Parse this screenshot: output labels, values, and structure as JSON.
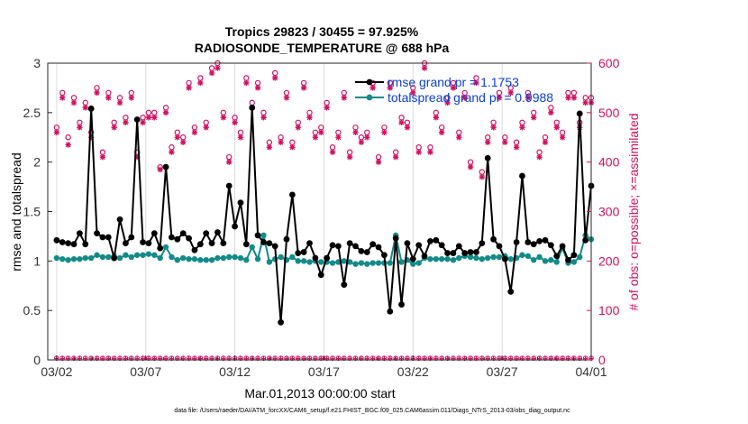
{
  "chart_data": {
    "type": "line",
    "title": "Tropics 29823 / 30455 = 97.925%",
    "subtitle": "RADIOSONDE_TEMPERATURE @ 688 hPa",
    "xlabel": "Mar.01,2013 00:00:00 start",
    "ylabel": "rmse and totalspread",
    "ylabel_right": "# of obs: o=possible; ×=assimilated",
    "x_tick_labels": [
      "03/02",
      "03/07",
      "03/12",
      "03/17",
      "03/22",
      "03/27",
      "04/01"
    ],
    "x_ticks": [
      1,
      6,
      11,
      16,
      21,
      26,
      31
    ],
    "xlim": [
      0.5,
      31.0
    ],
    "ylim": [
      0,
      3
    ],
    "y_tick_labels": [
      "0",
      "0.5",
      "1",
      "1.5",
      "2",
      "2.5",
      "3"
    ],
    "ylim_right": [
      0,
      600
    ],
    "y_right_tick_labels": [
      "0",
      "100",
      "200",
      "300",
      "400",
      "500",
      "600"
    ],
    "grid": "vertical",
    "legend_position": "top-right",
    "footnote": "data file: /Users/raeder/DAI/ATM_forcXX/CAM6_setup/f.e21.FHIST_BGC.f09_025.CAM6assim.011/Diags_NTrS_2013-03/obs_diag_output.nc",
    "series": [
      {
        "name": "rmse grand pr = 1.1753",
        "color": "#000000",
        "values": [
          1.21,
          1.19,
          1.18,
          1.17,
          1.28,
          1.17,
          2.54,
          1.28,
          1.24,
          1.24,
          1.03,
          1.42,
          1.18,
          1.24,
          2.43,
          1.19,
          1.18,
          1.28,
          1.13,
          1.95,
          1.24,
          1.22,
          1.28,
          1.23,
          1.11,
          1.17,
          1.28,
          1.18,
          1.29,
          1.18,
          1.76,
          1.35,
          1.59,
          1.17,
          2.55,
          1.26,
          1.19,
          1.18,
          1.15,
          0.38,
          1.22,
          1.67,
          1.08,
          1.09,
          1.18,
          1.03,
          0.86,
          1.03,
          1.16,
          1.15,
          0.76,
          1.18,
          1.15,
          1.1,
          1.09,
          1.17,
          1.14,
          1.06,
          0.49,
          1.23,
          0.56,
          1.18,
          1.02,
          1.16,
          1.05,
          1.2,
          1.21,
          1.16,
          1.08,
          1.08,
          1.15,
          1.08,
          1.09,
          1.09,
          1.18,
          2.04,
          1.22,
          1.15,
          1.02,
          0.69,
          1.19,
          1.86,
          1.19,
          1.17,
          1.2,
          1.21,
          1.16,
          1.05,
          1.15,
          1.01,
          1.06,
          2.49,
          1.21,
          1.76
        ]
      },
      {
        "name": "totalspread grand pr = 0.9988",
        "color": "#138b88",
        "values": [
          1.03,
          1.02,
          1.01,
          1.02,
          1.02,
          1.03,
          1.03,
          1.06,
          1.04,
          1.04,
          1.05,
          1.03,
          1.06,
          1.04,
          1.06,
          1.06,
          1.07,
          1.06,
          1.03,
          1.14,
          1.04,
          1.01,
          1.03,
          1.02,
          1.02,
          1.01,
          1.01,
          1.01,
          1.03,
          1.03,
          1.04,
          1.04,
          1.03,
          1.01,
          1.14,
          1.02,
          1.26,
          0.99,
          1.02,
          1.04,
          1.01,
          1.04,
          1.0,
          1.0,
          0.99,
          1.0,
          0.99,
          0.99,
          0.98,
          0.99,
          1.0,
          0.99,
          0.97,
          0.98,
          0.97,
          0.98,
          0.98,
          0.98,
          0.98,
          1.26,
          0.99,
          1.01,
          0.97,
          0.98,
          1.03,
          1.02,
          1.02,
          1.02,
          1.02,
          1.01,
          1.03,
          1.05,
          1.04,
          1.03,
          1.02,
          1.03,
          1.04,
          1.04,
          1.05,
          1.02,
          1.03,
          1.06,
          1.05,
          1.01,
          1.04,
          1.0,
          1.01,
          0.99,
          1.13,
          0.98,
          0.99,
          1.04,
          1.26,
          1.22
        ]
      },
      {
        "name": "obs possible",
        "axis": "right",
        "color": "#d01060",
        "marker": "circle",
        "values": [
          470,
          540,
          450,
          530,
          480,
          520,
          460,
          550,
          420,
          540,
          480,
          530,
          490,
          540,
          420,
          490,
          500,
          500,
          390,
          510,
          430,
          460,
          450,
          560,
          470,
          570,
          480,
          590,
          600,
          500,
          410,
          490,
          460,
          570,
          520,
          560,
          500,
          440,
          580,
          450,
          540,
          440,
          480,
          560,
          500,
          460,
          470,
          520,
          430,
          460,
          540,
          420,
          470,
          450,
          460,
          560,
          410,
          470,
          560,
          420,
          490,
          480,
          550,
          430,
          600,
          430,
          500,
          470,
          530,
          560,
          460,
          540,
          400,
          570,
          380,
          450,
          480,
          540,
          450,
          550,
          440,
          480,
          540,
          500,
          420,
          450,
          510,
          480,
          460,
          540,
          540,
          480,
          530,
          530
        ]
      },
      {
        "name": "obs assimilated",
        "axis": "right",
        "color": "#d01060",
        "marker": "x",
        "values": [
          460,
          530,
          435,
          520,
          470,
          510,
          450,
          540,
          410,
          530,
          470,
          520,
          480,
          530,
          410,
          480,
          490,
          490,
          385,
          500,
          420,
          450,
          440,
          550,
          460,
          560,
          470,
          580,
          590,
          490,
          400,
          480,
          450,
          560,
          510,
          550,
          490,
          430,
          570,
          440,
          530,
          430,
          470,
          550,
          490,
          450,
          460,
          510,
          420,
          450,
          530,
          410,
          460,
          440,
          450,
          550,
          400,
          460,
          550,
          410,
          480,
          470,
          540,
          420,
          590,
          420,
          490,
          460,
          520,
          550,
          450,
          530,
          390,
          560,
          370,
          440,
          470,
          530,
          440,
          540,
          430,
          470,
          530,
          490,
          410,
          440,
          500,
          470,
          450,
          530,
          530,
          470,
          520,
          520
        ]
      }
    ]
  }
}
